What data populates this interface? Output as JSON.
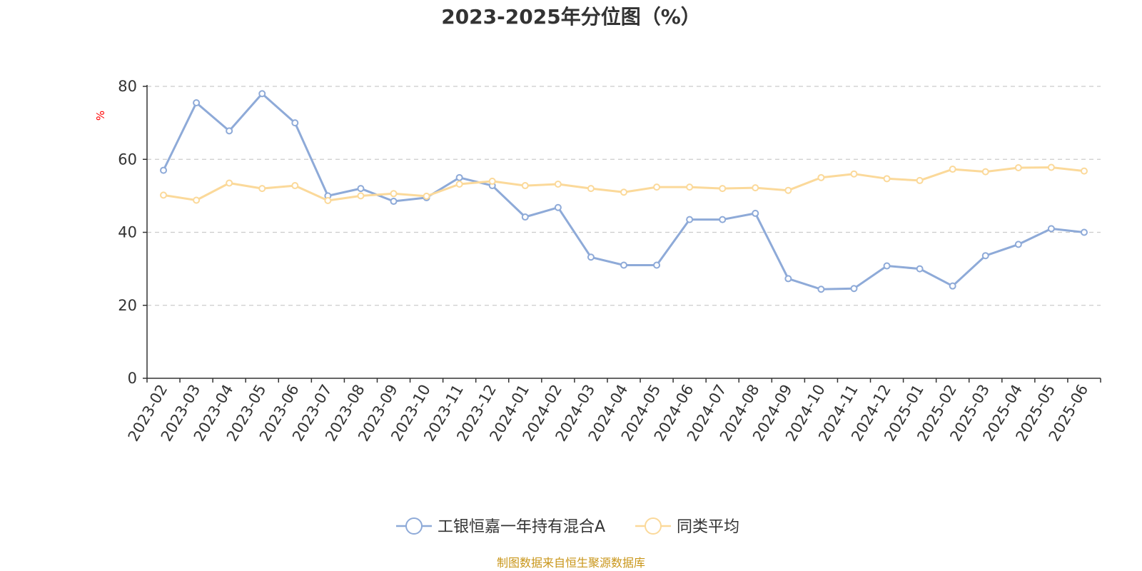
{
  "chart_data": {
    "type": "line",
    "title": "2023-2025年分位图（%）",
    "y_unit": "%",
    "ylim": [
      0,
      80
    ],
    "y_ticks": [
      0,
      20,
      40,
      60,
      80
    ],
    "grid": true,
    "legend_position": "bottom",
    "categories": [
      "2023-02",
      "2023-03",
      "2023-04",
      "2023-05",
      "2023-06",
      "2023-07",
      "2023-08",
      "2023-09",
      "2023-10",
      "2023-11",
      "2023-12",
      "2024-01",
      "2024-02",
      "2024-03",
      "2024-04",
      "2024-05",
      "2024-06",
      "2024-07",
      "2024-08",
      "2024-09",
      "2024-10",
      "2024-11",
      "2024-12",
      "2025-01",
      "2025-02",
      "2025-03",
      "2025-04",
      "2025-05",
      "2025-06"
    ],
    "series": [
      {
        "name": "工银恒嘉一年持有混合A",
        "color": "#8eaad8",
        "values": [
          57,
          75.5,
          67.8,
          78,
          70,
          50,
          52,
          48.5,
          49.5,
          55,
          52.8,
          44.2,
          46.8,
          33.2,
          31,
          31,
          43.5,
          43.5,
          45.2,
          27.3,
          24.4,
          24.6,
          30.8,
          30,
          25.3,
          33.6,
          36.7,
          41,
          40
        ]
      },
      {
        "name": "同类平均",
        "color": "#fbd99a",
        "values": [
          50.2,
          48.8,
          53.5,
          52,
          52.8,
          48.7,
          50,
          50.6,
          49.9,
          53.2,
          54,
          52.8,
          53.2,
          52,
          51,
          52.4,
          52.4,
          52,
          52.2,
          51.5,
          55,
          56,
          54.7,
          54.2,
          57.3,
          56.6,
          57.7,
          57.8,
          56.8
        ]
      }
    ]
  },
  "source_note": "制图数据来自恒生聚源数据库"
}
